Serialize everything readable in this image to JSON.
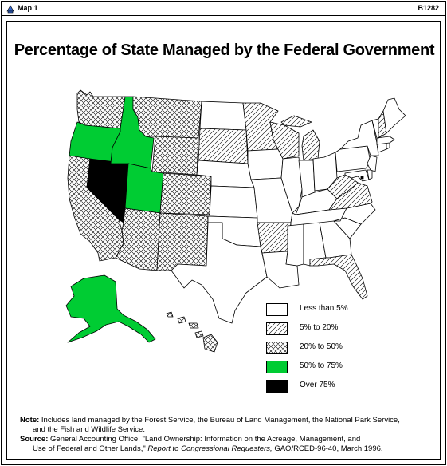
{
  "window": {
    "title": "Map 1",
    "code": "B1282"
  },
  "page_title": "Percentage of State Managed by the Federal Government",
  "legend": [
    {
      "label": "Less than 5%",
      "pattern": "none"
    },
    {
      "label": "5% to 20%",
      "pattern": "diagonal"
    },
    {
      "label": "20% to 50%",
      "pattern": "crosshatch"
    },
    {
      "label": "50% to 75%",
      "pattern": "green"
    },
    {
      "label": "Over 75%",
      "pattern": "black"
    }
  ],
  "colors": {
    "green": "#00cc33",
    "black": "#000000",
    "line": "#000000"
  },
  "states": {
    "nevada": "Over 75%",
    "idaho": "50% to 75%",
    "oregon": "50% to 75%",
    "utah": "50% to 75%",
    "alaska": "50% to 75%",
    "washington": "20% to 50%",
    "california": "20% to 50%",
    "montana": "20% to 50%",
    "wyoming": "20% to 50%",
    "colorado": "20% to 50%",
    "arizona": "20% to 50%",
    "new_mexico": "20% to 50%",
    "hawaii": "20% to 50%",
    "south_dakota": "5% to 20%",
    "minnesota": "5% to 20%",
    "michigan": "5% to 20%",
    "wisconsin": "5% to 20%",
    "new_hampshire": "5% to 20%",
    "virginia": "5% to 20%",
    "west_virginia": "5% to 20%",
    "arkansas": "5% to 20%",
    "florida": "5% to 20%",
    "north_dakota": "Less than 5%",
    "nebraska": "Less than 5%",
    "kansas": "Less than 5%",
    "oklahoma": "Less than 5%",
    "texas": "Less than 5%",
    "iowa": "Less than 5%",
    "missouri": "Less than 5%",
    "louisiana": "Less than 5%",
    "illinois": "Less than 5%",
    "indiana": "Less than 5%",
    "ohio": "Less than 5%",
    "kentucky": "Less than 5%",
    "tennessee": "Less than 5%",
    "mississippi": "Less than 5%",
    "alabama": "Less than 5%",
    "georgia": "Less than 5%",
    "south_carolina": "Less than 5%",
    "north_carolina": "Less than 5%",
    "pennsylvania": "Less than 5%",
    "new_york": "Less than 5%",
    "maine": "Less than 5%",
    "vermont": "Less than 5%",
    "massachusetts": "Less than 5%",
    "new_jersey": "Less than 5%",
    "maryland": "Less than 5%",
    "delaware": "Less than 5%",
    "connecticut": "Less than 5%",
    "rhode_island": "Less than 5%",
    "district_of_columbia": "Over 75%"
  },
  "notes": {
    "note_label": "Note:",
    "note_text_1": "Includes land managed by the Forest Service, the Bureau of Land Management, the National Park Service,",
    "note_text_2": "and the Fish and Wildlife Service.",
    "source_label": "Source:",
    "source_text_1": "General Accounting Office, \"Land Ownership: Information on the Acreage, Management, and",
    "source_text_2a": "Use of Federal and Other Lands,\"",
    "source_text_2b": "Report to Congressional Requesters,",
    "source_text_2c": "GAO/RCED-96-40, March 1996."
  }
}
